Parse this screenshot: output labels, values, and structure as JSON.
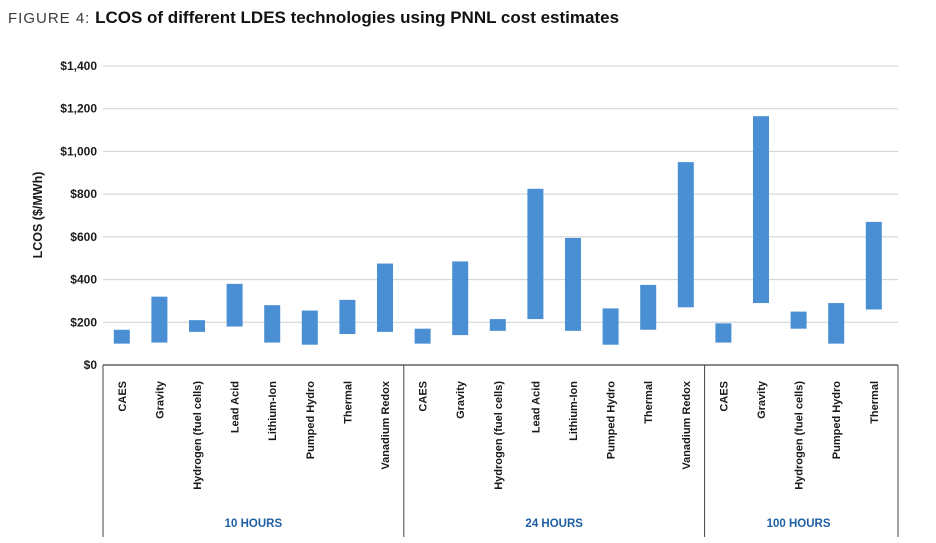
{
  "figure": {
    "prefix": "FIGURE 4:",
    "title": "LCOS of different LDES technologies using PNNL cost estimates"
  },
  "colors": {
    "bar": "#4a8fd4",
    "grid": "#cfcfcf",
    "axis": "#444444",
    "group_label": "#1f5fa3"
  },
  "chart_data": {
    "type": "bar",
    "subtype": "floating-range",
    "ylabel": "LCOS ($/MWh)",
    "xlabel": "",
    "ylim": [
      0,
      1400
    ],
    "yticks": [
      0,
      200,
      400,
      600,
      800,
      1000,
      1200,
      1400
    ],
    "ytick_labels": [
      "$0",
      "$200",
      "$400",
      "$600",
      "$800",
      "$1,000",
      "$1,200",
      "$1,400"
    ],
    "grid": true,
    "legend": "none",
    "groups": [
      {
        "name": "10 HOURS",
        "categories": [
          "CAES",
          "Gravity",
          "Hydrogen (fuel cells)",
          "Lead Acid",
          "Lithium-Ion",
          "Pumped Hydro",
          "Thermal",
          "Vanadium Redox"
        ],
        "ranges": [
          [
            100,
            165
          ],
          [
            105,
            320
          ],
          [
            155,
            210
          ],
          [
            180,
            380
          ],
          [
            105,
            280
          ],
          [
            95,
            255
          ],
          [
            145,
            305
          ],
          [
            155,
            475
          ]
        ]
      },
      {
        "name": "24 HOURS",
        "categories": [
          "CAES",
          "Gravity",
          "Hydrogen (fuel cells)",
          "Lead Acid",
          "Lithium-Ion",
          "Pumped Hydro",
          "Thermal",
          "Vanadium Redox"
        ],
        "ranges": [
          [
            100,
            170
          ],
          [
            140,
            485
          ],
          [
            160,
            215
          ],
          [
            215,
            825
          ],
          [
            160,
            595
          ],
          [
            95,
            265
          ],
          [
            165,
            375
          ],
          [
            270,
            950
          ]
        ]
      },
      {
        "name": "100 HOURS",
        "categories": [
          "CAES",
          "Gravity",
          "Hydrogen (fuel cells)",
          "Pumped Hydro",
          "Thermal"
        ],
        "ranges": [
          [
            105,
            195
          ],
          [
            290,
            1165
          ],
          [
            170,
            250
          ],
          [
            100,
            290
          ],
          [
            260,
            670
          ]
        ]
      }
    ]
  }
}
